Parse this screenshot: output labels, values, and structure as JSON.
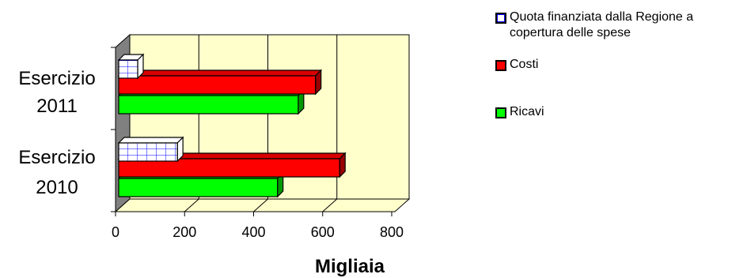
{
  "chart_data": {
    "type": "bar",
    "orientation": "horizontal",
    "three_d": true,
    "categories": [
      "Esercizio 2010",
      "Esercizio 2011"
    ],
    "category_lines": [
      [
        "Esercizio",
        "2010"
      ],
      [
        "Esercizio",
        "2011"
      ]
    ],
    "series": [
      {
        "name": "Ricavi",
        "values": [
          460,
          520
        ],
        "color": "#00ff00",
        "pattern": "solid"
      },
      {
        "name": "Costi",
        "values": [
          640,
          570
        ],
        "color": "#ff0000",
        "pattern": "solid"
      },
      {
        "name": "Quota finanziata dalla Regione a copertura delle spese",
        "values": [
          170,
          55
        ],
        "color": "#ffffff",
        "pattern": "blue-grid"
      }
    ],
    "legend_order": [
      2,
      1,
      0
    ],
    "legend_labels": [
      [
        "Quota finanziata dalla Regione a",
        "copertura delle spese"
      ],
      [
        "Costi"
      ],
      [
        "Ricavi"
      ]
    ],
    "xlabel": "Migliaia",
    "xlim": [
      0,
      800
    ],
    "xticks": [
      0,
      200,
      400,
      600,
      800
    ],
    "xtick_labels": [
      "0",
      "200",
      "400",
      "600",
      "800"
    ],
    "grid": true,
    "plot_background": "#ffffcc",
    "grid_pattern_color": "#0000ff",
    "legend_position": "right"
  }
}
